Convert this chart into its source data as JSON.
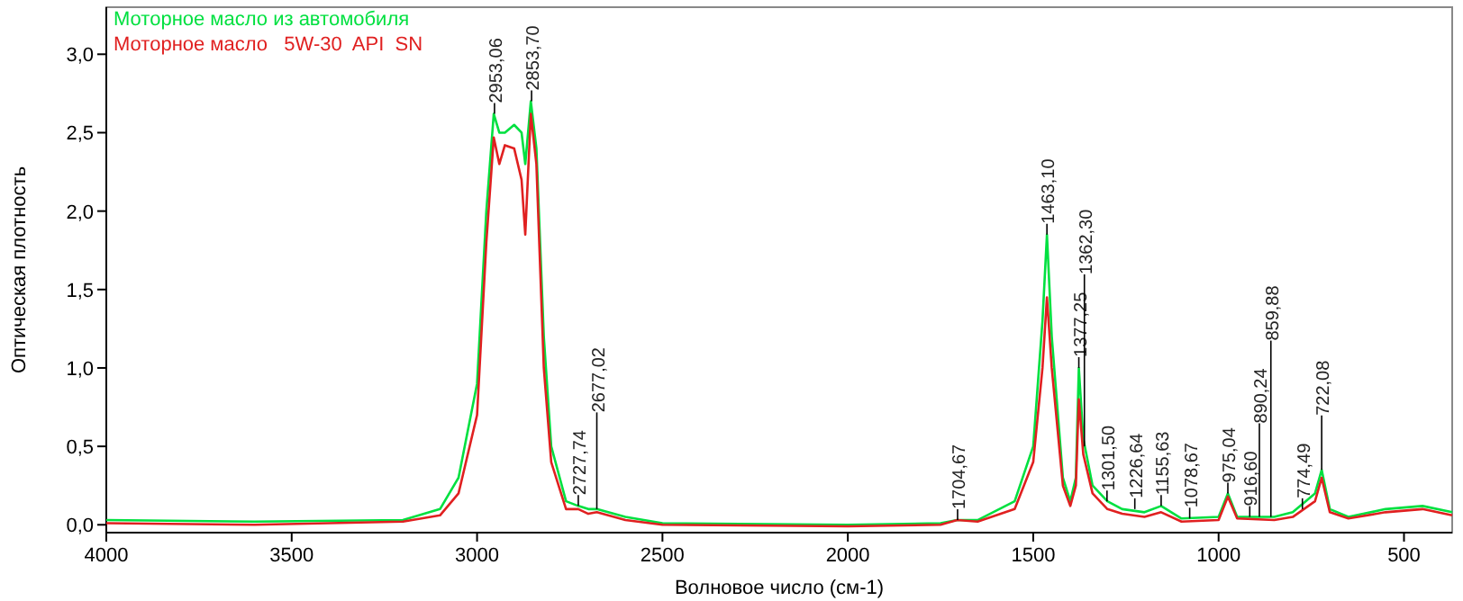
{
  "chart_data": {
    "type": "line",
    "xlabel": "Волновое число (см-1)",
    "ylabel": "Оптическая плотность",
    "xlim": [
      4000,
      370
    ],
    "ylim": [
      -0.05,
      3.3
    ],
    "xticks": [
      4000,
      3500,
      3000,
      2500,
      2000,
      1500,
      1000,
      500
    ],
    "yticks": [
      {
        "value": 0,
        "label": "0,0"
      },
      {
        "value": 0.5,
        "label": "0,5"
      },
      {
        "value": 1,
        "label": "1,0"
      },
      {
        "value": 1.5,
        "label": "1,5"
      },
      {
        "value": 2,
        "label": "2,0"
      },
      {
        "value": 2.5,
        "label": "2,5"
      },
      {
        "value": 3,
        "label": "3,0"
      }
    ],
    "x": [
      4000,
      3600,
      3200,
      3100,
      3050,
      3000,
      2975,
      2955,
      2940,
      2925,
      2900,
      2880,
      2870,
      2855,
      2840,
      2820,
      2800,
      2760,
      2727,
      2700,
      2677,
      2600,
      2500,
      2000,
      1750,
      1705,
      1650,
      1550,
      1500,
      1475,
      1463,
      1450,
      1420,
      1400,
      1385,
      1377,
      1365,
      1340,
      1300,
      1260,
      1200,
      1155,
      1100,
      1000,
      975,
      950,
      850,
      800,
      740,
      722,
      700,
      650,
      550,
      450,
      370
    ],
    "series": [
      {
        "name": "Моторное масло из автомобиля",
        "color": "#00e040",
        "values": [
          0.03,
          0.02,
          0.03,
          0.1,
          0.3,
          0.9,
          2.0,
          2.62,
          2.5,
          2.5,
          2.55,
          2.5,
          2.3,
          2.7,
          2.4,
          1.2,
          0.5,
          0.15,
          0.12,
          0.1,
          0.1,
          0.05,
          0.01,
          0.0,
          0.01,
          0.03,
          0.03,
          0.15,
          0.5,
          1.3,
          1.85,
          1.2,
          0.3,
          0.15,
          0.3,
          1.0,
          0.55,
          0.25,
          0.15,
          0.1,
          0.08,
          0.12,
          0.04,
          0.05,
          0.2,
          0.05,
          0.05,
          0.08,
          0.2,
          0.35,
          0.1,
          0.05,
          0.1,
          0.12,
          0.08
        ]
      },
      {
        "name": "Моторное масло   5W-30  API  SN",
        "color": "#e02020",
        "values": [
          0.01,
          0.0,
          0.02,
          0.06,
          0.2,
          0.7,
          1.8,
          2.47,
          2.3,
          2.42,
          2.4,
          2.2,
          1.85,
          2.62,
          2.3,
          1.0,
          0.4,
          0.1,
          0.1,
          0.07,
          0.08,
          0.03,
          0.0,
          -0.01,
          0.0,
          0.03,
          0.02,
          0.1,
          0.4,
          1.0,
          1.45,
          1.0,
          0.25,
          0.12,
          0.25,
          0.8,
          0.45,
          0.2,
          0.1,
          0.07,
          0.05,
          0.08,
          0.02,
          0.03,
          0.18,
          0.04,
          0.03,
          0.05,
          0.15,
          0.3,
          0.08,
          0.04,
          0.08,
          0.1,
          0.06
        ]
      }
    ],
    "annotations": [
      {
        "text": "2953,06",
        "x": 2953,
        "y": 2.62
      },
      {
        "text": "2853,70",
        "x": 2853,
        "y": 2.7
      },
      {
        "text": "2727,74",
        "x": 2727,
        "y": 0.12
      },
      {
        "text": "2677,02",
        "x": 2677,
        "y": 0.1
      },
      {
        "text": "1704,67",
        "x": 1704,
        "y": 0.03
      },
      {
        "text": "1463,10",
        "x": 1463,
        "y": 1.85
      },
      {
        "text": "1377,25",
        "x": 1377,
        "y": 1.0
      },
      {
        "text": "1362,30",
        "x": 1362,
        "y": 0.5
      },
      {
        "text": "1301,50",
        "x": 1301,
        "y": 0.15
      },
      {
        "text": "1226,64",
        "x": 1226,
        "y": 0.1
      },
      {
        "text": "1155,63",
        "x": 1155,
        "y": 0.12
      },
      {
        "text": "1078,67",
        "x": 1078,
        "y": 0.04
      },
      {
        "text": "975,04",
        "x": 975,
        "y": 0.2
      },
      {
        "text": "916,60",
        "x": 916,
        "y": 0.05
      },
      {
        "text": "890,24",
        "x": 890,
        "y": 0.05
      },
      {
        "text": "859,88",
        "x": 859,
        "y": 0.05
      },
      {
        "text": "774,49",
        "x": 774,
        "y": 0.1
      },
      {
        "text": "722,08",
        "x": 722,
        "y": 0.35
      }
    ],
    "legend": "top left"
  }
}
